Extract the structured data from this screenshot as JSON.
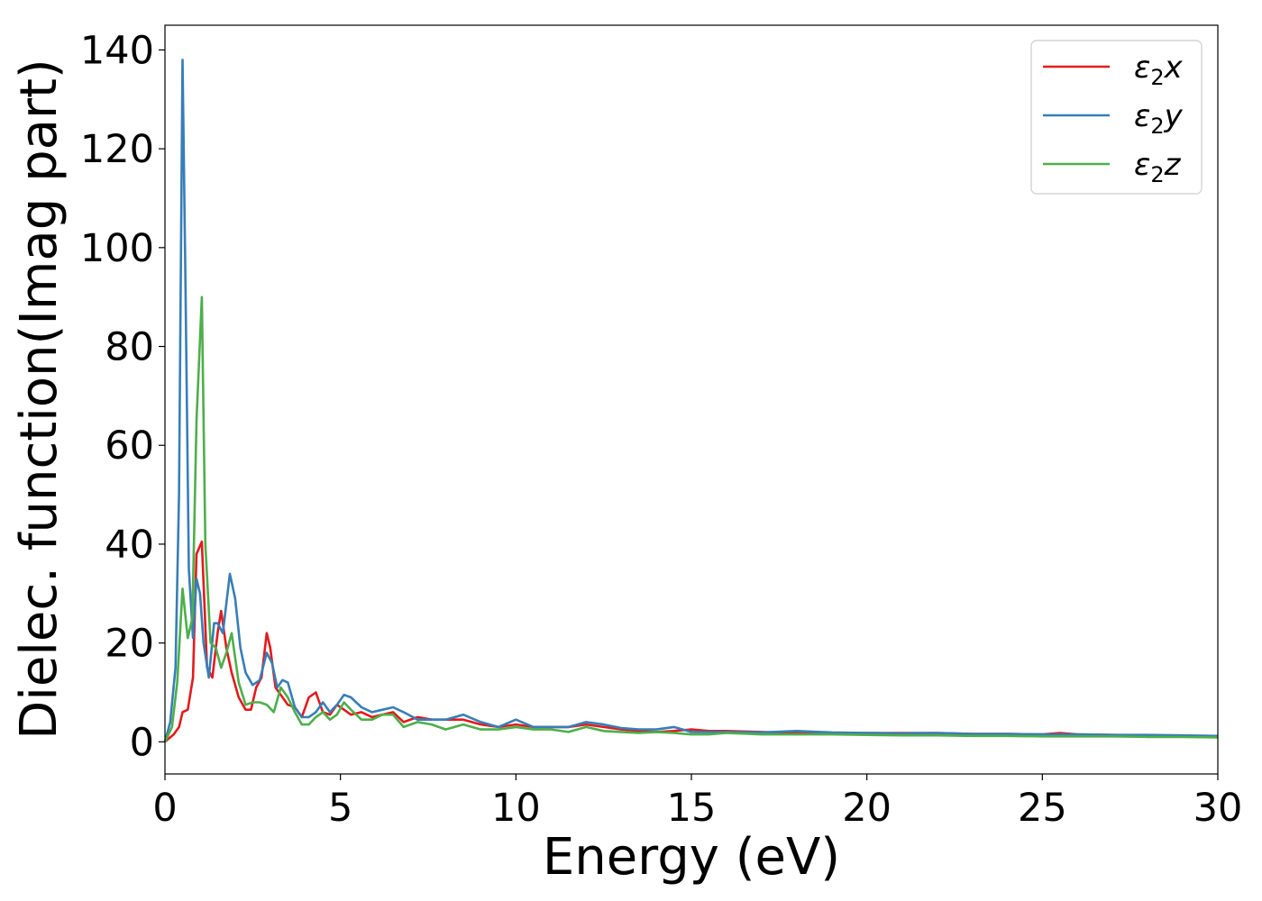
{
  "chart_data": {
    "type": "line",
    "title": "",
    "xlabel": "Energy (eV)",
    "ylabel": "Dielec. function(Imag part)",
    "xlim": [
      0,
      30
    ],
    "ylim": [
      -6.5,
      145
    ],
    "xticks": [
      0,
      5,
      10,
      15,
      20,
      25,
      30
    ],
    "yticks": [
      0,
      20,
      40,
      60,
      80,
      100,
      120,
      140
    ],
    "grid": false,
    "legend_position": "top-right",
    "series": [
      {
        "name": "ε₂x",
        "legend_main": "ε",
        "legend_sub": "2",
        "legend_suffix": "x",
        "color": "#e41a1c",
        "x": [
          0,
          0.25,
          0.4,
          0.5,
          0.65,
          0.8,
          0.9,
          1.05,
          1.2,
          1.35,
          1.5,
          1.6,
          1.75,
          1.9,
          2.1,
          2.3,
          2.45,
          2.6,
          2.75,
          2.9,
          3.0,
          3.15,
          3.3,
          3.5,
          3.7,
          3.9,
          4.1,
          4.3,
          4.5,
          4.7,
          4.9,
          5.1,
          5.3,
          5.6,
          5.9,
          6.2,
          6.5,
          6.8,
          7.2,
          7.6,
          8.0,
          8.5,
          9.0,
          9.5,
          10.0,
          10.5,
          11.0,
          11.5,
          12.0,
          12.5,
          13.0,
          13.5,
          14.0,
          14.5,
          15.0,
          15.5,
          16.0,
          17.0,
          18.0,
          19.0,
          20.0,
          21.0,
          22.0,
          23.0,
          24.0,
          25.0,
          25.5,
          26.0,
          27.0,
          28.0,
          29.0,
          30.0
        ],
        "values": [
          0,
          1.5,
          3,
          6,
          6.5,
          13,
          38,
          40.5,
          15,
          13,
          22,
          26.5,
          19,
          14,
          9,
          6.5,
          6.5,
          11,
          13,
          22,
          19,
          11,
          9.5,
          7.5,
          7,
          5,
          9,
          10,
          6,
          5.5,
          7.5,
          6.5,
          5.5,
          6,
          5,
          5.5,
          6,
          4,
          5,
          4.5,
          4.5,
          4.5,
          3.5,
          3,
          3.5,
          3,
          3,
          3,
          3.5,
          3,
          2.5,
          2.2,
          2,
          2.2,
          2.5,
          2.2,
          2.2,
          2,
          1.8,
          1.8,
          1.8,
          1.8,
          1.8,
          1.6,
          1.6,
          1.5,
          1.8,
          1.5,
          1.4,
          1.3,
          1.2,
          1.1
        ]
      },
      {
        "name": "ε₂y",
        "legend_main": "ε",
        "legend_sub": "2",
        "legend_suffix": "y",
        "color": "#377eb8",
        "x": [
          0,
          0.15,
          0.3,
          0.4,
          0.5,
          0.58,
          0.68,
          0.8,
          0.9,
          1.0,
          1.1,
          1.25,
          1.4,
          1.5,
          1.65,
          1.85,
          2.0,
          2.15,
          2.3,
          2.5,
          2.7,
          2.9,
          3.05,
          3.2,
          3.35,
          3.5,
          3.7,
          3.9,
          4.1,
          4.3,
          4.5,
          4.7,
          4.9,
          5.1,
          5.3,
          5.6,
          5.9,
          6.2,
          6.5,
          6.8,
          7.2,
          7.6,
          8.0,
          8.5,
          9.0,
          9.5,
          10.0,
          10.5,
          11.0,
          11.5,
          12.0,
          12.5,
          13.0,
          13.5,
          14.0,
          14.5,
          15.0,
          15.5,
          16.0,
          17.0,
          18.0,
          19.0,
          20.0,
          21.0,
          22.0,
          23.0,
          24.0,
          25.0,
          26.0,
          27.0,
          28.0,
          29.0,
          30.0
        ],
        "values": [
          0,
          4,
          15,
          50,
          138,
          95,
          35,
          21,
          33,
          30,
          20,
          13,
          24,
          24,
          22,
          34,
          29,
          19,
          14,
          11.5,
          12.5,
          18,
          16,
          11,
          12.5,
          12,
          7,
          5,
          5,
          6,
          8,
          6,
          7.5,
          9.5,
          9,
          7,
          6,
          6.5,
          7,
          6,
          4.5,
          4.5,
          4.5,
          5.5,
          4,
          3,
          4.5,
          3,
          3,
          3,
          4,
          3.5,
          2.8,
          2.5,
          2.5,
          3,
          2,
          2,
          2,
          1.9,
          2.2,
          1.9,
          1.8,
          1.7,
          1.8,
          1.6,
          1.6,
          1.5,
          1.5,
          1.4,
          1.4,
          1.3,
          1.2
        ]
      },
      {
        "name": "ε₂z",
        "legend_main": "ε",
        "legend_sub": "2",
        "legend_suffix": "z",
        "color": "#4daf4a",
        "x": [
          0,
          0.2,
          0.35,
          0.5,
          0.65,
          0.78,
          0.9,
          1.05,
          1.15,
          1.3,
          1.45,
          1.6,
          1.75,
          1.9,
          2.1,
          2.3,
          2.5,
          2.7,
          2.9,
          3.1,
          3.3,
          3.5,
          3.7,
          3.9,
          4.1,
          4.3,
          4.5,
          4.7,
          4.9,
          5.1,
          5.3,
          5.6,
          5.9,
          6.2,
          6.5,
          6.8,
          7.2,
          7.6,
          8.0,
          8.5,
          9.0,
          9.5,
          10.0,
          10.5,
          11.0,
          11.5,
          12.0,
          12.5,
          13.0,
          13.5,
          14.0,
          14.5,
          15.0,
          15.5,
          16.0,
          17.0,
          18.0,
          19.0,
          20.0,
          21.0,
          22.0,
          23.0,
          24.0,
          25.0,
          26.0,
          27.0,
          28.0,
          29.0,
          30.0
        ],
        "values": [
          0,
          3,
          12,
          31,
          21,
          25,
          65,
          90,
          40,
          20,
          19,
          15,
          18,
          22,
          12,
          7.5,
          8,
          8,
          7.5,
          6,
          11,
          9,
          6,
          3.5,
          3.5,
          5,
          6,
          4.5,
          5.5,
          8,
          6.5,
          4.5,
          4.5,
          5.5,
          5.5,
          3,
          4,
          3.5,
          2.5,
          3.5,
          2.5,
          2.5,
          3,
          2.5,
          2.5,
          2,
          3,
          2.2,
          2,
          1.8,
          2,
          1.8,
          1.5,
          1.5,
          1.8,
          1.5,
          1.5,
          1.5,
          1.4,
          1.3,
          1.3,
          1.2,
          1.2,
          1.1,
          1.1,
          1.1,
          1.0,
          1.0,
          0.9
        ]
      }
    ]
  }
}
